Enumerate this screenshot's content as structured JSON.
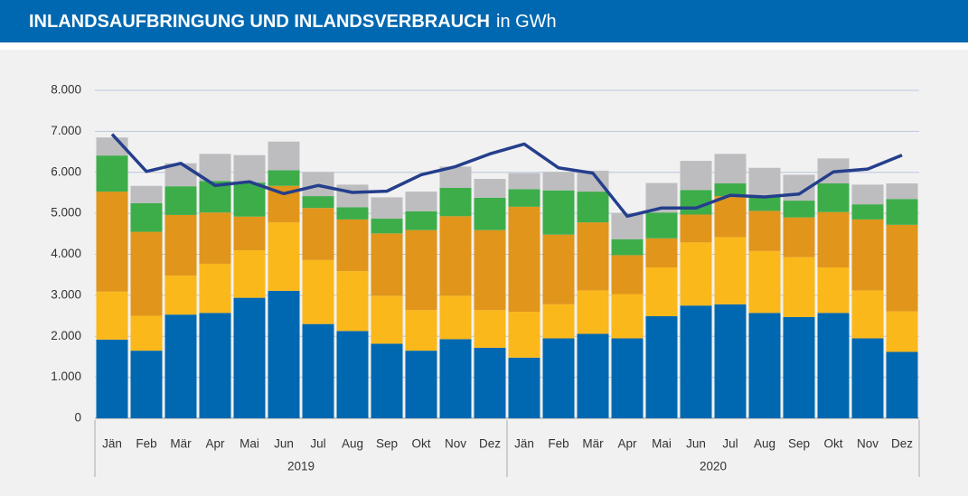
{
  "chart_data": {
    "type": "bar",
    "stacked": true,
    "title": "INLANDSAUFBRINGUNG UND INLANDSVERBRAUCH",
    "subtitle": "in GWh",
    "categories": [
      "Jän",
      "Feb",
      "Mär",
      "Apr",
      "Mai",
      "Jun",
      "Jul",
      "Aug",
      "Sep",
      "Okt",
      "Nov",
      "Dez",
      "Jän",
      "Feb",
      "Mär",
      "Apr",
      "Mai",
      "Jun",
      "Jul",
      "Aug",
      "Sep",
      "Okt",
      "Nov",
      "Dez"
    ],
    "years": [
      "2019",
      "2020"
    ],
    "ylim": [
      0,
      8000
    ],
    "yticks": [
      0,
      {
        "value": 1000,
        "label": "1.000"
      },
      {
        "value": 2000,
        "label": "2.000"
      },
      {
        "value": 3000,
        "label": "3.000"
      },
      {
        "value": 4000,
        "label": "4.000"
      },
      {
        "value": 5000,
        "label": "5.000"
      },
      {
        "value": 6000,
        "label": "6.000"
      },
      {
        "value": 7000,
        "label": "7.000"
      },
      {
        "value": 8000,
        "label": "8.000"
      }
    ],
    "grid": true,
    "series": [
      {
        "color": "#0068b0",
        "values": [
          1920,
          1650,
          2530,
          2570,
          2940,
          3110,
          2300,
          2130,
          1820,
          1650,
          1930,
          1720,
          1480,
          1950,
          2060,
          1950,
          2490,
          2750,
          2780,
          2570,
          2470,
          2570,
          1950,
          1620
        ]
      },
      {
        "color": "#fbb81b",
        "values": [
          1170,
          850,
          950,
          1200,
          1160,
          1670,
          1560,
          1460,
          1170,
          990,
          1060,
          920,
          1120,
          830,
          1060,
          1080,
          1190,
          1540,
          1640,
          1510,
          1460,
          1110,
          1170,
          990
        ]
      },
      {
        "color": "#e1951b",
        "values": [
          2440,
          2050,
          1480,
          1250,
          820,
          890,
          1270,
          1260,
          1520,
          1950,
          1940,
          1950,
          2560,
          1700,
          1660,
          950,
          710,
          680,
          1000,
          980,
          970,
          1350,
          1730,
          2110
        ]
      },
      {
        "color": "#3dad4a",
        "values": [
          880,
          700,
          700,
          770,
          830,
          380,
          290,
          300,
          360,
          460,
          690,
          790,
          430,
          1080,
          750,
          390,
          630,
          600,
          310,
          340,
          410,
          700,
          370,
          630
        ]
      },
      {
        "color": "#bdbdbf",
        "values": [
          440,
          420,
          560,
          660,
          670,
          700,
          590,
          550,
          520,
          480,
          520,
          460,
          390,
          450,
          510,
          640,
          720,
          710,
          720,
          710,
          630,
          610,
          480,
          380
        ]
      },
      {
        "type": "line",
        "color": "#253e8c",
        "values": [
          6930,
          6020,
          6220,
          5680,
          5770,
          5480,
          5680,
          5510,
          5540,
          5940,
          6140,
          6450,
          6690,
          6110,
          5980,
          4930,
          5130,
          5130,
          5440,
          5400,
          5470,
          6010,
          6080,
          6420
        ]
      }
    ]
  }
}
